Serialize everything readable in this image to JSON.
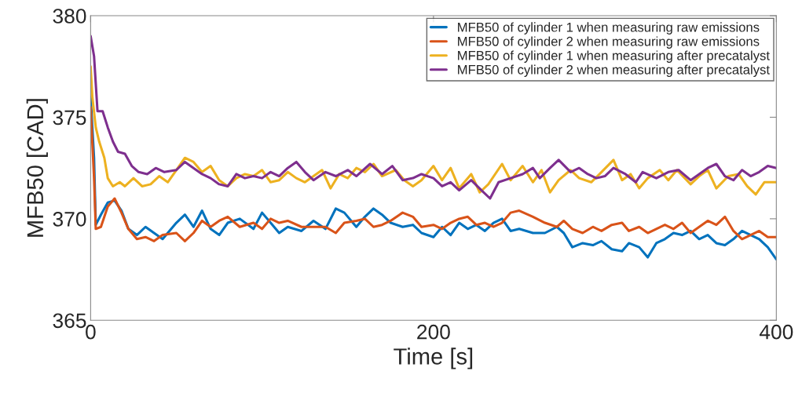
{
  "chart_data": {
    "type": "line",
    "xlabel": "Time [s]",
    "ylabel": "MFB50 [CAD]",
    "xlim": [
      0,
      400
    ],
    "ylim": [
      365,
      380
    ],
    "xticks": [
      0,
      200,
      400
    ],
    "yticks": [
      365,
      370,
      375,
      380
    ],
    "grid": false,
    "legend": "top right",
    "marker": "none",
    "line_style": "solid",
    "series": [
      {
        "name": "MFB50 of cylinder 1 when measuring raw emissions",
        "color": "#0072bd",
        "x": [
          0,
          2,
          3,
          6,
          10,
          14,
          18,
          22,
          27,
          32,
          37,
          42,
          50,
          55,
          60,
          65,
          70,
          75,
          80,
          87,
          95,
          100,
          105,
          110,
          115,
          123,
          130,
          137,
          143,
          148,
          155,
          160,
          165,
          170,
          175,
          182,
          188,
          193,
          200,
          205,
          210,
          215,
          220,
          225,
          230,
          235,
          240,
          245,
          250,
          258,
          265,
          272,
          276,
          281,
          287,
          293,
          298,
          304,
          310,
          314,
          320,
          325,
          330,
          335,
          340,
          345,
          350,
          355,
          360,
          365,
          370,
          375,
          380,
          385,
          390,
          395,
          400
        ],
        "values": [
          376,
          373,
          369.7,
          370.2,
          370.8,
          370.9,
          370.4,
          369.5,
          369.2,
          369.6,
          369.3,
          369.0,
          369.8,
          370.2,
          369.6,
          370.4,
          369.5,
          369.2,
          369.8,
          370.0,
          369.5,
          370.3,
          369.8,
          369.3,
          369.6,
          369.4,
          369.9,
          369.5,
          370.5,
          370.3,
          369.6,
          370.1,
          370.5,
          370.2,
          369.8,
          369.6,
          369.7,
          369.3,
          369.1,
          369.6,
          369.2,
          369.8,
          369.5,
          369.7,
          369.4,
          369.8,
          370.0,
          369.4,
          369.5,
          369.3,
          369.3,
          369.6,
          369.3,
          368.6,
          368.8,
          368.7,
          368.9,
          368.5,
          368.4,
          368.8,
          368.6,
          368.1,
          368.8,
          369.0,
          369.3,
          369.2,
          369.4,
          369.0,
          369.2,
          368.8,
          368.7,
          369.0,
          369.4,
          369.2,
          369.0,
          368.6,
          368.0
        ]
      },
      {
        "name": "MFB50 of cylinder 2 when measuring raw emissions",
        "color": "#d95319",
        "x": [
          0,
          2,
          3,
          6,
          10,
          14,
          18,
          22,
          27,
          32,
          37,
          42,
          50,
          55,
          60,
          65,
          70,
          75,
          80,
          87,
          95,
          100,
          105,
          110,
          115,
          123,
          130,
          137,
          143,
          148,
          155,
          160,
          165,
          170,
          175,
          182,
          188,
          193,
          200,
          205,
          210,
          215,
          220,
          225,
          230,
          235,
          240,
          245,
          250,
          258,
          265,
          272,
          276,
          281,
          287,
          293,
          298,
          304,
          310,
          314,
          320,
          325,
          330,
          335,
          340,
          345,
          350,
          355,
          360,
          365,
          370,
          375,
          380,
          385,
          390,
          395,
          400
        ],
        "values": [
          375.5,
          372,
          369.5,
          369.6,
          370.6,
          371.0,
          370.3,
          369.5,
          369.0,
          369.1,
          368.9,
          369.2,
          369.3,
          368.9,
          369.3,
          369.9,
          369.6,
          369.9,
          370.1,
          369.6,
          369.8,
          369.5,
          370.0,
          369.8,
          369.9,
          369.6,
          369.6,
          369.6,
          369.3,
          369.8,
          369.9,
          370.0,
          369.6,
          369.7,
          369.9,
          370.3,
          370.1,
          369.6,
          369.7,
          369.5,
          369.8,
          370.0,
          370.1,
          369.7,
          369.8,
          369.6,
          369.8,
          370.3,
          370.4,
          370.1,
          369.8,
          369.6,
          369.9,
          369.5,
          369.3,
          369.6,
          369.4,
          369.7,
          369.8,
          369.4,
          369.6,
          369.3,
          369.5,
          369.7,
          369.5,
          369.8,
          369.3,
          369.6,
          369.9,
          369.7,
          370.1,
          369.4,
          369.0,
          369.2,
          369.4,
          369.1,
          369.1
        ]
      },
      {
        "name": "MFB50 of cylinder 1 when measuring after precatalyst",
        "color": "#edb120",
        "x": [
          0,
          1,
          3,
          5,
          8,
          10,
          13,
          17,
          20,
          25,
          30,
          35,
          40,
          45,
          50,
          55,
          60,
          65,
          70,
          75,
          80,
          85,
          90,
          95,
          100,
          105,
          110,
          115,
          120,
          125,
          130,
          135,
          140,
          145,
          150,
          155,
          160,
          165,
          170,
          178,
          183,
          188,
          193,
          200,
          205,
          210,
          215,
          222,
          227,
          232,
          240,
          245,
          252,
          258,
          263,
          268,
          273,
          280,
          285,
          292,
          298,
          305,
          310,
          315,
          320,
          325,
          332,
          337,
          342,
          350,
          355,
          360,
          365,
          372,
          378,
          383,
          388,
          393,
          400
        ],
        "values": [
          377.5,
          376,
          374.5,
          373.8,
          373.0,
          372.0,
          371.6,
          371.8,
          371.6,
          372.0,
          371.6,
          371.7,
          372.1,
          371.8,
          372.4,
          373.0,
          372.8,
          372.3,
          372.6,
          371.9,
          371.6,
          372.0,
          372.2,
          372.1,
          372.4,
          371.8,
          371.9,
          372.3,
          372.0,
          371.8,
          372.1,
          372.4,
          371.5,
          372.2,
          372.0,
          372.5,
          372.3,
          372.7,
          372.1,
          372.4,
          371.9,
          371.6,
          371.9,
          372.6,
          371.9,
          372.5,
          371.5,
          372.2,
          371.3,
          371.7,
          372.7,
          371.9,
          372.6,
          371.8,
          372.4,
          371.3,
          371.9,
          372.4,
          372.0,
          371.8,
          372.3,
          372.9,
          371.9,
          372.2,
          371.5,
          372.0,
          372.4,
          371.9,
          372.4,
          371.7,
          372.1,
          372.4,
          371.5,
          372.1,
          372.2,
          371.6,
          371.2,
          371.8,
          371.8
        ]
      },
      {
        "name": "MFB50 of cylinder 2 when measuring after precatalyst",
        "color": "#7e2f8e",
        "x": [
          0,
          2,
          4,
          7,
          10,
          13,
          16,
          20,
          24,
          28,
          33,
          38,
          43,
          50,
          55,
          60,
          65,
          70,
          75,
          80,
          85,
          90,
          95,
          100,
          105,
          110,
          115,
          120,
          125,
          130,
          137,
          143,
          150,
          155,
          163,
          170,
          176,
          182,
          188,
          193,
          200,
          205,
          210,
          215,
          222,
          228,
          233,
          238,
          245,
          252,
          258,
          262,
          268,
          273,
          280,
          285,
          290,
          295,
          300,
          305,
          312,
          318,
          322,
          330,
          337,
          343,
          350,
          355,
          360,
          365,
          370,
          375,
          380,
          385,
          390,
          395,
          400
        ],
        "values": [
          379,
          378,
          375.3,
          375.3,
          374.5,
          373.8,
          373.3,
          373.2,
          372.6,
          372.3,
          372.2,
          372.5,
          372.3,
          372.4,
          372.8,
          372.5,
          372.2,
          372.0,
          371.7,
          371.6,
          372.2,
          372.0,
          372.1,
          372.0,
          372.3,
          372.1,
          372.5,
          372.8,
          372.3,
          371.9,
          372.3,
          372.1,
          372.4,
          372.1,
          372.7,
          372.2,
          372.6,
          371.9,
          372.0,
          372.2,
          372.0,
          371.6,
          371.8,
          371.4,
          371.9,
          371.4,
          371.0,
          371.8,
          372.0,
          372.2,
          372.5,
          372.0,
          372.5,
          372.9,
          372.3,
          372.5,
          372.2,
          372.0,
          372.1,
          372.5,
          372.2,
          371.8,
          372.3,
          372.0,
          372.3,
          372.4,
          371.9,
          372.2,
          372.5,
          372.7,
          372.1,
          371.9,
          372.4,
          372.1,
          372.3,
          372.6,
          372.5
        ]
      }
    ]
  }
}
